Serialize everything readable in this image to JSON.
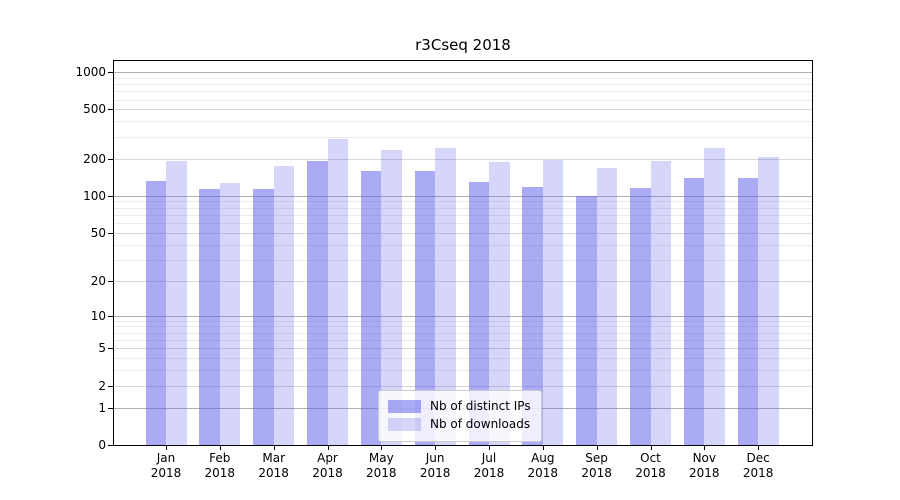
{
  "title": "r3Cseq 2018",
  "colors": {
    "bar_distinct_ips": "rgba(85,85,235,0.5)",
    "bar_downloads": "rgba(85,85,235,0.24)",
    "bar_distinct_ips_solid": "#aaaaf5",
    "bar_downloads_solid": "#d9d9f8",
    "grid_major": "#b0b0b0",
    "grid_medium": "#d7d7d7",
    "grid_minor": "#ebebeb",
    "axis": "#000000"
  },
  "chart_data": {
    "type": "bar",
    "title": "r3Cseq 2018",
    "xlabel": "",
    "ylabel": "",
    "categories": [
      "Jan 2018",
      "Feb 2018",
      "Mar 2018",
      "Apr 2018",
      "May 2018",
      "Jun 2018",
      "Jul 2018",
      "Aug 2018",
      "Sep 2018",
      "Oct 2018",
      "Nov 2018",
      "Dec 2018"
    ],
    "series": [
      {
        "name": "Nb of distinct IPs",
        "values": [
          132,
          113,
          114,
          192,
          158,
          160,
          130,
          118,
          100,
          115,
          140,
          140
        ]
      },
      {
        "name": "Nb of downloads",
        "values": [
          190,
          128,
          175,
          290,
          235,
          246,
          188,
          194,
          168,
          190,
          242,
          208
        ]
      }
    ],
    "yscale": "symlog",
    "yticks": [
      0,
      1,
      2,
      5,
      10,
      20,
      50,
      100,
      200,
      500,
      1000
    ],
    "ylim": [
      0,
      1260
    ],
    "grid": true,
    "legend_position": "lower center"
  }
}
